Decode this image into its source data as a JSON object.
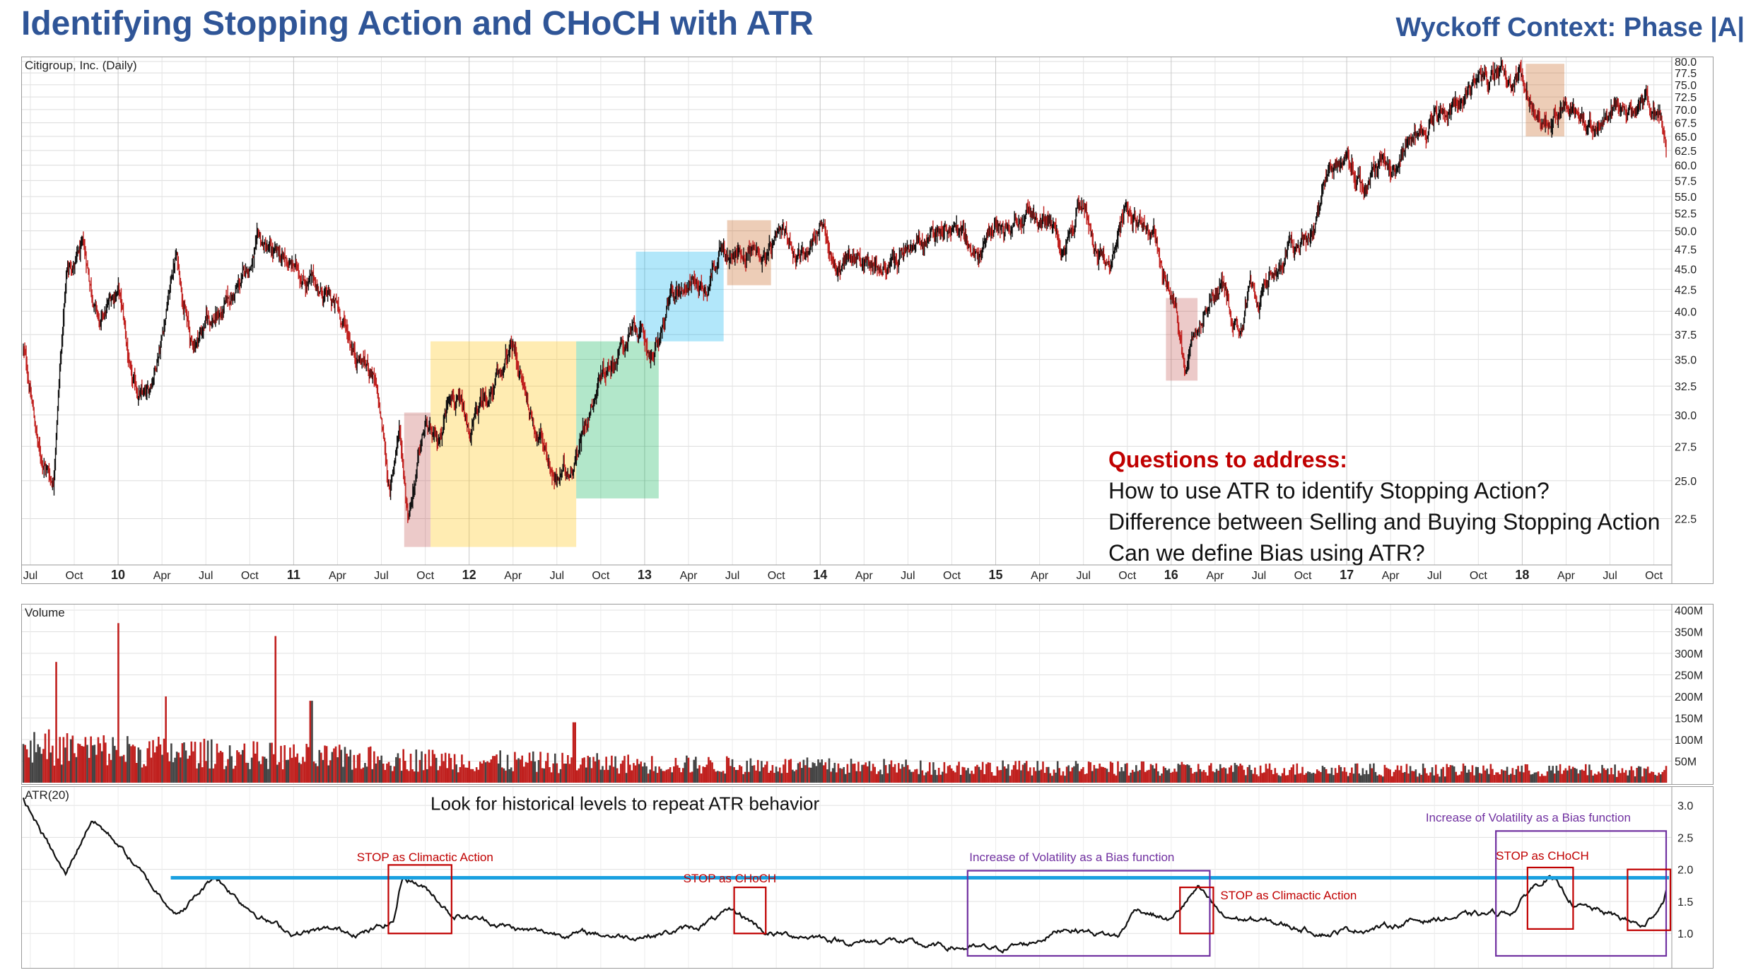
{
  "title": "Identifying Stopping Action and CHoCH with ATR",
  "context": "Wyckoff Context: Phase |A|",
  "questions": {
    "heading": "Questions to address:",
    "lines": [
      "How to use ATR to identify Stopping Action?",
      "Difference between Selling and Buying Stopping Action",
      "Can we define Bias using ATR?"
    ]
  },
  "colors": {
    "title": "#2F5597",
    "questions_heading": "#C00000",
    "annotation_red": "#C00000",
    "annotation_purple": "#7030A0",
    "atr_level_line": "#1AA0E0",
    "box_red": "#C0504D",
    "box_yellow": "#FFC000",
    "box_green": "#00B050",
    "box_blue": "#00B0F0",
    "box_brown": "#C55A11"
  },
  "chart_data": [
    {
      "type": "line",
      "panel": "price",
      "label": "Citigroup, Inc. (Daily)",
      "x_tick_labels": [
        "Jul",
        "Oct",
        "10",
        "Apr",
        "Jul",
        "Oct",
        "11",
        "Apr",
        "Jul",
        "Oct",
        "12",
        "Apr",
        "Jul",
        "Oct",
        "13",
        "Apr",
        "Jul",
        "Oct",
        "14",
        "Apr",
        "Jul",
        "Oct",
        "15",
        "Apr",
        "Jul",
        "Oct",
        "16",
        "Apr",
        "Jul",
        "Oct",
        "17",
        "Apr",
        "Jul",
        "Oct",
        "18",
        "Apr",
        "Jul",
        "Oct"
      ],
      "y_tick_labels": [
        "80.0",
        "77.5",
        "75.0",
        "72.5",
        "70.0",
        "67.5",
        "65.0",
        "62.5",
        "60.0",
        "57.5",
        "55.0",
        "52.5",
        "50.0",
        "47.5",
        "45.0",
        "42.5",
        "40.0",
        "37.5",
        "35.0",
        "32.5",
        "30.0",
        "27.5",
        "25.0",
        "22.5"
      ],
      "y_scale": "log",
      "ylim": [
        20.5,
        80
      ],
      "x_range": [
        2009.46,
        2018.82
      ],
      "x": [
        2009.46,
        2009.55,
        2009.63,
        2009.71,
        2009.8,
        2009.9,
        2010.0,
        2010.08,
        2010.17,
        2010.25,
        2010.33,
        2010.42,
        2010.5,
        2010.6,
        2010.7,
        2010.8,
        2010.9,
        2011.0,
        2011.08,
        2011.17,
        2011.25,
        2011.35,
        2011.45,
        2011.55,
        2011.6,
        2011.65,
        2011.7,
        2011.75,
        2011.82,
        2011.9,
        2012.0,
        2012.08,
        2012.17,
        2012.25,
        2012.35,
        2012.42,
        2012.5,
        2012.58,
        2012.67,
        2012.75,
        2012.85,
        2012.95,
        2013.05,
        2013.15,
        2013.25,
        2013.35,
        2013.42,
        2013.5,
        2013.6,
        2013.7,
        2013.8,
        2013.9,
        2014.0,
        2014.05,
        2014.1,
        2014.2,
        2014.3,
        2014.4,
        2014.5,
        2014.6,
        2014.7,
        2014.8,
        2014.9,
        2015.0,
        2015.1,
        2015.2,
        2015.3,
        2015.4,
        2015.5,
        2015.55,
        2015.6,
        2015.65,
        2015.7,
        2015.8,
        2015.9,
        2015.95,
        2016.02,
        2016.08,
        2016.12,
        2016.2,
        2016.3,
        2016.35,
        2016.4,
        2016.45,
        2016.5,
        2016.6,
        2016.7,
        2016.8,
        2016.9,
        2017.0,
        2017.1,
        2017.2,
        2017.3,
        2017.4,
        2017.5,
        2017.6,
        2017.7,
        2017.8,
        2017.9,
        2018.0,
        2018.04,
        2018.1,
        2018.15,
        2018.2,
        2018.3,
        2018.4,
        2018.5,
        2018.6,
        2018.7,
        2018.78,
        2018.82
      ],
      "close": [
        36,
        27,
        25,
        45,
        47,
        38,
        43,
        32,
        31,
        38,
        47,
        36,
        39,
        40,
        43,
        48,
        46,
        45,
        44,
        42,
        40,
        36,
        34,
        24,
        29,
        23,
        26,
        29,
        27,
        33,
        28,
        31,
        33,
        36,
        30,
        28,
        25,
        26,
        30,
        34,
        36,
        38,
        35,
        41,
        44,
        43,
        48,
        46,
        48,
        47,
        48,
        47,
        51,
        47,
        45,
        47,
        46,
        45,
        47,
        48,
        51,
        50,
        46,
        51,
        53,
        52,
        51,
        46,
        54,
        50,
        47,
        45,
        52,
        53,
        50,
        44,
        40,
        34,
        39,
        41,
        43,
        40,
        39,
        44,
        40,
        45,
        47,
        50,
        58,
        61,
        56,
        61,
        59,
        64,
        70,
        71,
        75,
        76,
        76,
        78,
        73,
        70,
        69,
        70,
        70,
        68,
        69,
        68,
        72,
        70,
        65
      ]
    },
    {
      "type": "bar",
      "panel": "volume",
      "label": "Volume",
      "y_tick_labels": [
        "400M",
        "350M",
        "300M",
        "250M",
        "200M",
        "150M",
        "100M",
        "50M"
      ],
      "ylim": [
        0,
        400
      ],
      "unit": "M shares",
      "peaks": [
        {
          "x": 2009.65,
          "value": 280
        },
        {
          "x": 2010.0,
          "value": 370
        },
        {
          "x": 2010.27,
          "value": 200
        },
        {
          "x": 2010.9,
          "value": 340
        },
        {
          "x": 2011.1,
          "value": 190
        },
        {
          "x": 2012.6,
          "value": 140
        }
      ]
    },
    {
      "type": "line",
      "panel": "atr",
      "label": "ATR(20)",
      "y_tick_labels": [
        "3.0",
        "2.5",
        "2.0",
        "1.5",
        "1.0"
      ],
      "ylim": [
        0.55,
        3.2
      ],
      "x": [
        2009.46,
        2009.6,
        2009.7,
        2009.85,
        2010.0,
        2010.2,
        2010.35,
        2010.45,
        2010.55,
        2010.7,
        2010.85,
        2011.0,
        2011.2,
        2011.4,
        2011.5,
        2011.57,
        2011.62,
        2011.7,
        2011.8,
        2011.9,
        2012.1,
        2012.3,
        2012.5,
        2012.7,
        2012.9,
        2013.1,
        2013.3,
        2013.5,
        2013.6,
        2013.7,
        2013.8,
        2014.0,
        2014.2,
        2014.4,
        2014.6,
        2014.8,
        2015.0,
        2015.2,
        2015.4,
        2015.6,
        2015.7,
        2015.8,
        2015.9,
        2016.0,
        2016.1,
        2016.15,
        2016.3,
        2016.5,
        2016.7,
        2016.9,
        2017.0,
        2017.2,
        2017.4,
        2017.6,
        2017.8,
        2017.95,
        2018.05,
        2018.15,
        2018.3,
        2018.5,
        2018.6,
        2018.7,
        2018.8,
        2018.82
      ],
      "atr": [
        3.1,
        2.4,
        1.9,
        2.8,
        2.4,
        1.7,
        1.3,
        1.6,
        1.9,
        1.5,
        1.2,
        1.0,
        1.05,
        1.02,
        1.1,
        1.2,
        1.9,
        1.8,
        1.6,
        1.3,
        1.2,
        1.05,
        1.0,
        1.0,
        0.95,
        1.0,
        1.1,
        1.35,
        1.2,
        1.0,
        0.98,
        0.95,
        0.85,
        0.9,
        0.8,
        0.78,
        0.75,
        0.85,
        1.1,
        1.0,
        0.95,
        1.4,
        1.3,
        1.2,
        1.55,
        1.7,
        1.25,
        1.2,
        1.1,
        1.0,
        1.05,
        1.1,
        1.2,
        1.25,
        1.3,
        1.35,
        1.7,
        1.9,
        1.45,
        1.3,
        1.2,
        1.1,
        1.5,
        1.7
      ]
    }
  ],
  "highlight_boxes": [
    {
      "name": "box-red-2011",
      "color_key": "box_red",
      "x": [
        2011.63,
        2011.78
      ],
      "price": [
        20.8,
        30.2
      ]
    },
    {
      "name": "box-yellow-2012",
      "color_key": "box_yellow",
      "x": [
        2011.78,
        2012.61
      ],
      "price": [
        20.8,
        36.8
      ]
    },
    {
      "name": "box-green-2012",
      "color_key": "box_green",
      "x": [
        2012.61,
        2013.08
      ],
      "price": [
        23.8,
        36.8
      ]
    },
    {
      "name": "box-blue-2013",
      "color_key": "box_blue",
      "x": [
        2012.95,
        2013.45
      ],
      "price": [
        36.8,
        47.2
      ]
    },
    {
      "name": "box-brown-2013",
      "color_key": "box_brown",
      "x": [
        2013.47,
        2013.72
      ],
      "price": [
        43,
        51.5
      ]
    },
    {
      "name": "box-red-2016",
      "color_key": "box_red",
      "x": [
        2015.97,
        2016.15
      ],
      "price": [
        33,
        41.5
      ]
    },
    {
      "name": "box-brown-2018",
      "color_key": "box_brown",
      "x": [
        2018.02,
        2018.24
      ],
      "price": [
        65,
        79.5
      ]
    }
  ],
  "atr_level": 1.87,
  "atr_annotations": [
    {
      "name": "atr-annotation-history",
      "text": "Look for historical levels to repeat ATR behavior",
      "style": "black",
      "x": 2011.78,
      "y": 2.93,
      "box": null
    },
    {
      "name": "atr-annotation-climactic-2011",
      "text": "STOP as Climactic Action",
      "style": "red",
      "x": 2011.36,
      "y": 2.13,
      "box": {
        "x": [
          2011.54,
          2011.9
        ],
        "y": [
          1.0,
          2.07
        ]
      }
    },
    {
      "name": "atr-annotation-choch-2013",
      "text": "STOP as CHoCH",
      "style": "red",
      "x": 2013.22,
      "y": 1.8,
      "box": {
        "x": [
          2013.51,
          2013.69
        ],
        "y": [
          1.0,
          1.72
        ]
      }
    },
    {
      "name": "atr-annotation-volatility-2015",
      "text": "Increase of Volatility as a Bias function",
      "style": "purple",
      "x": 2014.85,
      "y": 2.13,
      "box": {
        "x": [
          2014.84,
          2016.22
        ],
        "y": [
          0.65,
          1.98
        ]
      }
    },
    {
      "name": "atr-annotation-climactic-2016",
      "text": "STOP as Climactic Action",
      "style": "red",
      "x": 2016.28,
      "y": 1.53,
      "box": {
        "x": [
          2016.05,
          2016.24
        ],
        "y": [
          1.0,
          1.72
        ]
      }
    },
    {
      "name": "atr-annotation-volatility-2018",
      "text": "Increase of Volatility as a Bias function",
      "style": "purple",
      "x": 2017.45,
      "y": 2.75,
      "box": {
        "x": [
          2017.85,
          2018.82
        ],
        "y": [
          0.65,
          2.6
        ]
      }
    },
    {
      "name": "atr-annotation-choch-2018",
      "text": "STOP as CHoCH",
      "style": "red",
      "x": 2017.85,
      "y": 2.15,
      "box": {
        "x": [
          2018.03,
          2018.29
        ],
        "y": [
          1.07,
          2.03
        ]
      }
    },
    {
      "name": "atr-annotation-box-2018-right",
      "text": "",
      "style": "red",
      "box": {
        "x": [
          2018.6,
          2018.9
        ],
        "y": [
          1.05,
          2.0
        ]
      }
    }
  ]
}
